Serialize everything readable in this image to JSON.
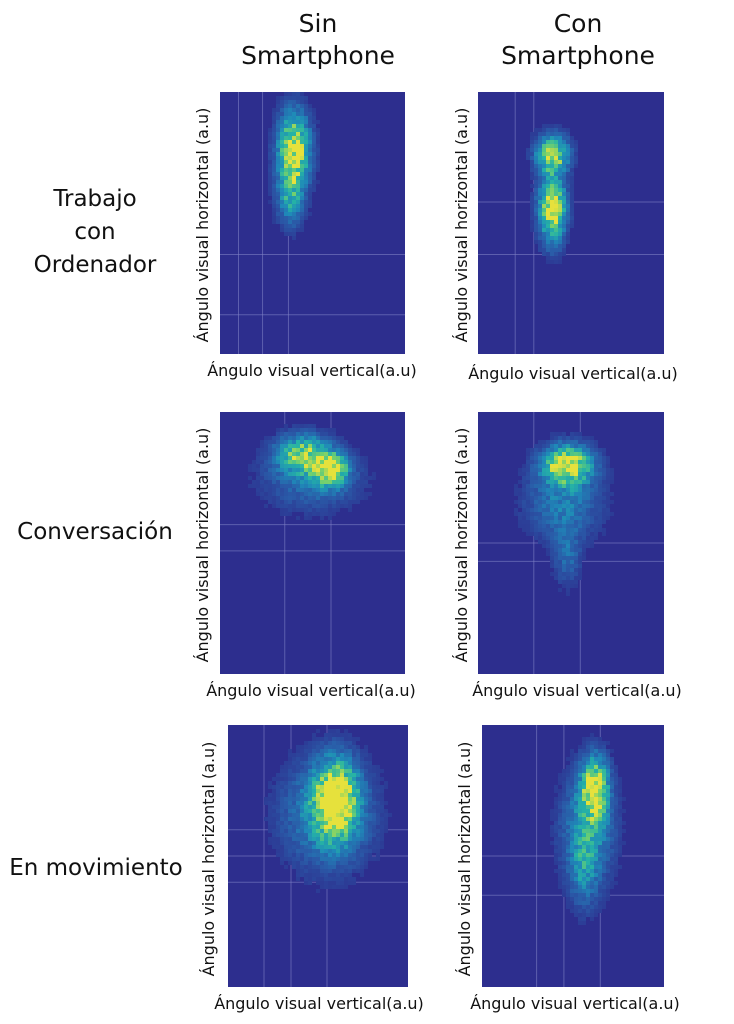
{
  "column_headers": [
    {
      "line1": "Sin",
      "line2": "Smartphone"
    },
    {
      "line1": "Con",
      "line2": "Smartphone"
    }
  ],
  "row_labels": [
    {
      "lines": [
        "Trabajo",
        "con",
        "Ordenador"
      ]
    },
    {
      "lines": [
        "Conversación"
      ]
    },
    {
      "lines": [
        "En movimiento"
      ]
    }
  ],
  "colors": {
    "background": "#2d2e8e",
    "colormap": [
      "#2d2e8e",
      "#2a5ba8",
      "#1f88b8",
      "#25b2a6",
      "#6fcf70",
      "#e6e13c"
    ],
    "gridline": "#7d80c4"
  },
  "chart_data": [
    {
      "type": "heatmap",
      "row": "Trabajo con Ordenador",
      "column": "Sin Smartphone",
      "xlabel": "Ángulo visual vertical(a.u)",
      "ylabel": "Ángulo visual horizontal (a.u)",
      "xlim": [
        0,
        1
      ],
      "ylim": [
        0,
        1
      ],
      "grid": true,
      "gridlines_x": [
        0.1,
        0.23,
        0.37
      ],
      "gridlines_y": [
        0.15,
        0.38
      ],
      "clusters": [
        {
          "x": 0.4,
          "y": 0.78,
          "sx": 0.06,
          "sy": 0.1,
          "peak": 1.0
        },
        {
          "x": 0.38,
          "y": 0.6,
          "sx": 0.05,
          "sy": 0.08,
          "peak": 0.45
        }
      ]
    },
    {
      "type": "heatmap",
      "row": "Trabajo con Ordenador",
      "column": "Con Smartphone",
      "xlabel": "Ángulo visual vertical(a.u)",
      "ylabel": "Ángulo visual horizontal (a.u)",
      "xlim": [
        0,
        1
      ],
      "ylim": [
        0,
        1
      ],
      "grid": true,
      "gridlines_x": [
        0.2,
        0.3
      ],
      "gridlines_y": [
        0.38,
        0.58
      ],
      "clusters": [
        {
          "x": 0.4,
          "y": 0.76,
          "sx": 0.06,
          "sy": 0.05,
          "peak": 0.95
        },
        {
          "x": 0.4,
          "y": 0.58,
          "sx": 0.05,
          "sy": 0.07,
          "peak": 0.75
        },
        {
          "x": 0.4,
          "y": 0.5,
          "sx": 0.05,
          "sy": 0.08,
          "peak": 0.45
        }
      ]
    },
    {
      "type": "heatmap",
      "row": "Conversación",
      "column": "Sin Smartphone",
      "xlabel": "Ángulo visual vertical(a.u)",
      "ylabel": "Ángulo visual horizontal (a.u)",
      "xlim": [
        0,
        1
      ],
      "ylim": [
        0,
        1
      ],
      "grid": true,
      "gridlines_x": [
        0.35,
        0.6
      ],
      "gridlines_y": [
        0.47,
        0.57
      ],
      "clusters": [
        {
          "x": 0.45,
          "y": 0.84,
          "sx": 0.1,
          "sy": 0.05,
          "peak": 0.75
        },
        {
          "x": 0.6,
          "y": 0.78,
          "sx": 0.06,
          "sy": 0.04,
          "peak": 0.95
        },
        {
          "x": 0.5,
          "y": 0.74,
          "sx": 0.18,
          "sy": 0.08,
          "peak": 0.3
        }
      ]
    },
    {
      "type": "heatmap",
      "row": "Conversación",
      "column": "Con Smartphone",
      "xlabel": "Ángulo visual vertical(a.u)",
      "ylabel": "Ángulo visual horizontal (a.u)",
      "xlim": [
        0,
        1
      ],
      "ylim": [
        0,
        1
      ],
      "grid": true,
      "gridlines_x": [
        0.3,
        0.55
      ],
      "gridlines_y": [
        0.43,
        0.5
      ],
      "clusters": [
        {
          "x": 0.48,
          "y": 0.8,
          "sx": 0.09,
          "sy": 0.05,
          "peak": 1.0
        },
        {
          "x": 0.46,
          "y": 0.66,
          "sx": 0.14,
          "sy": 0.1,
          "peak": 0.35
        },
        {
          "x": 0.48,
          "y": 0.45,
          "sx": 0.05,
          "sy": 0.08,
          "peak": 0.25
        }
      ]
    },
    {
      "type": "heatmap",
      "row": "En movimiento",
      "column": "Sin Smartphone",
      "xlabel": "Ángulo visual vertical(a.u)",
      "ylabel": "Ángulo visual horizontal (a.u)",
      "xlim": [
        0,
        1
      ],
      "ylim": [
        0,
        1
      ],
      "grid": true,
      "gridlines_x": [
        0.2,
        0.35,
        0.55
      ],
      "gridlines_y": [
        0.4,
        0.5,
        0.6
      ],
      "clusters": [
        {
          "x": 0.6,
          "y": 0.72,
          "sx": 0.08,
          "sy": 0.1,
          "peak": 1.0
        },
        {
          "x": 0.55,
          "y": 0.66,
          "sx": 0.17,
          "sy": 0.14,
          "peak": 0.45
        }
      ]
    },
    {
      "type": "heatmap",
      "row": "En movimiento",
      "column": "Con Smartphone",
      "xlabel": "Ángulo visual vertical(a.u)",
      "ylabel": "Ángulo visual horizontal (a.u)",
      "xlim": [
        0,
        1
      ],
      "ylim": [
        0,
        1
      ],
      "grid": true,
      "gridlines_x": [
        0.3,
        0.45,
        0.65
      ],
      "gridlines_y": [
        0.35,
        0.5
      ],
      "clusters": [
        {
          "x": 0.62,
          "y": 0.76,
          "sx": 0.05,
          "sy": 0.08,
          "peak": 0.95
        },
        {
          "x": 0.58,
          "y": 0.6,
          "sx": 0.1,
          "sy": 0.15,
          "peak": 0.45
        },
        {
          "x": 0.56,
          "y": 0.45,
          "sx": 0.05,
          "sy": 0.1,
          "peak": 0.3
        }
      ]
    }
  ]
}
